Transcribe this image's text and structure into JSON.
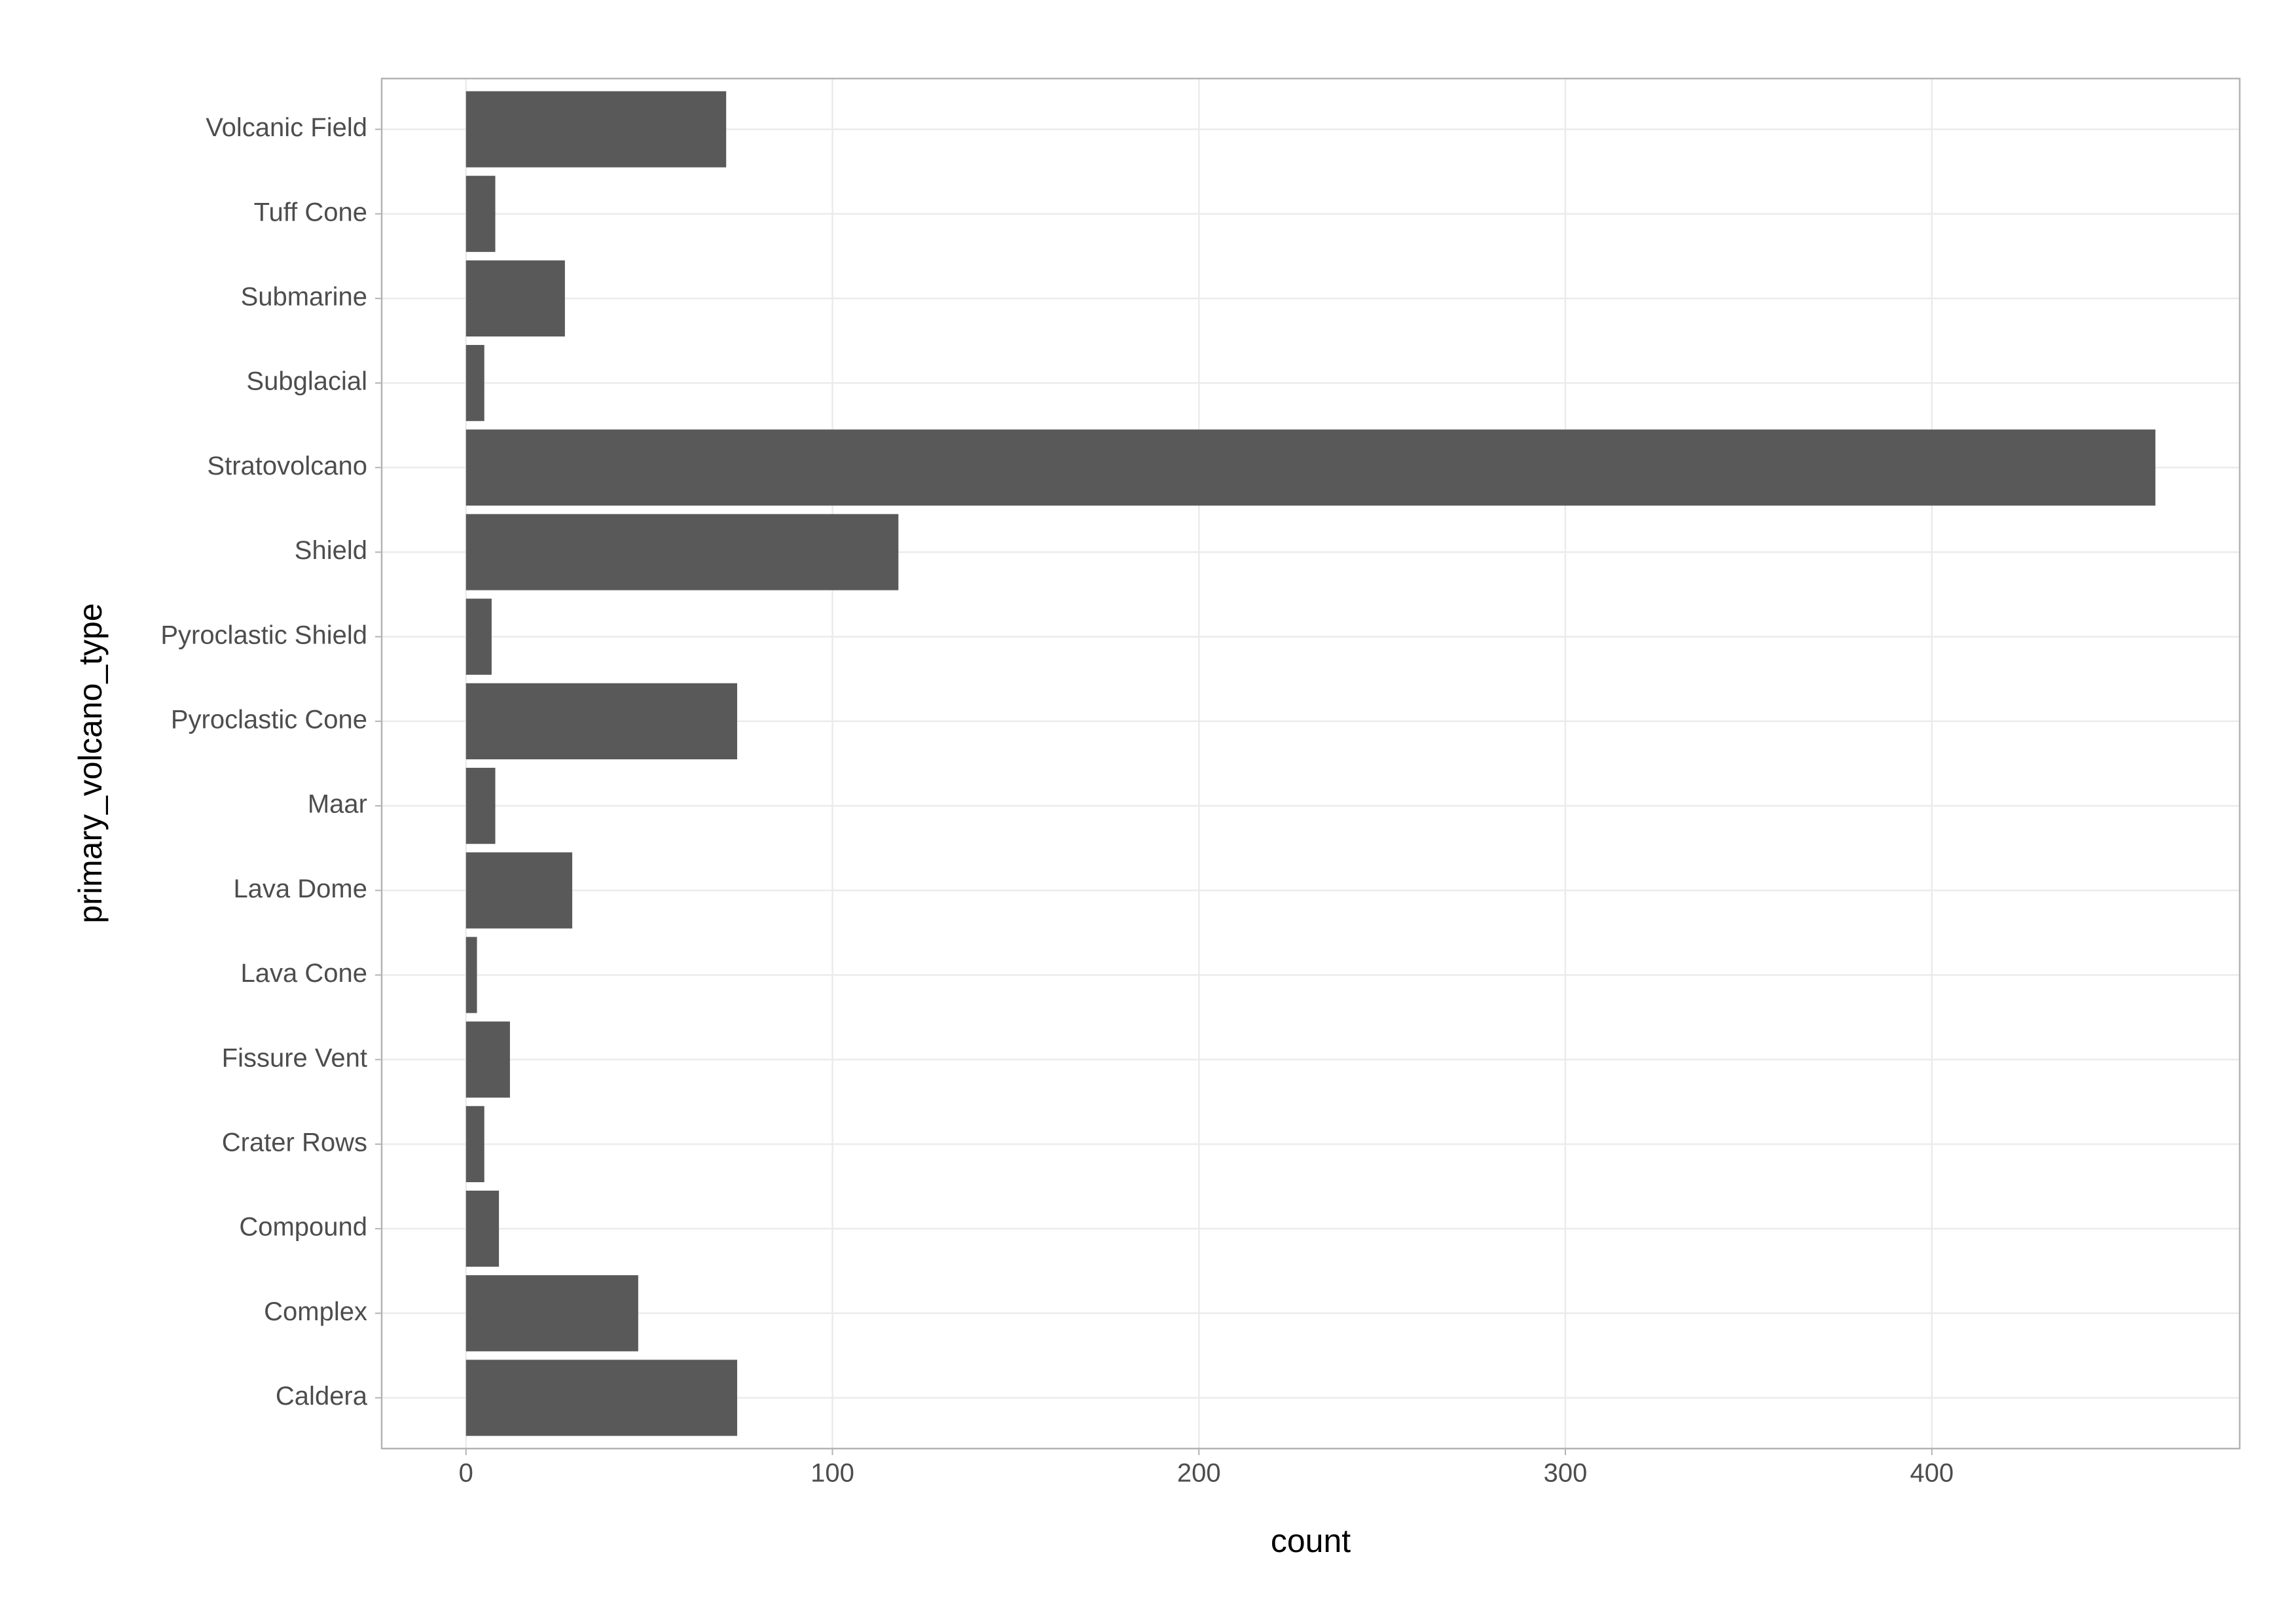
{
  "chart_data": {
    "type": "bar",
    "orientation": "horizontal",
    "x_label": "count",
    "y_label": "primary_volcano_type",
    "categories": [
      "Caldera",
      "Complex",
      "Compound",
      "Crater Rows",
      "Fissure Vent",
      "Lava Cone",
      "Lava Dome",
      "Maar",
      "Pyroclastic Cone",
      "Pyroclastic Shield",
      "Shield",
      "Stratovolcano",
      "Subglacial",
      "Submarine",
      "Tuff Cone",
      "Volcanic Field"
    ],
    "values": [
      74,
      47,
      9,
      5,
      12,
      3,
      29,
      8,
      74,
      7,
      118,
      461,
      5,
      27,
      8,
      71
    ],
    "color": "#595959",
    "xlim": [
      -23,
      484
    ],
    "xticks": [
      0,
      100,
      200,
      300,
      400
    ],
    "grid": true
  }
}
